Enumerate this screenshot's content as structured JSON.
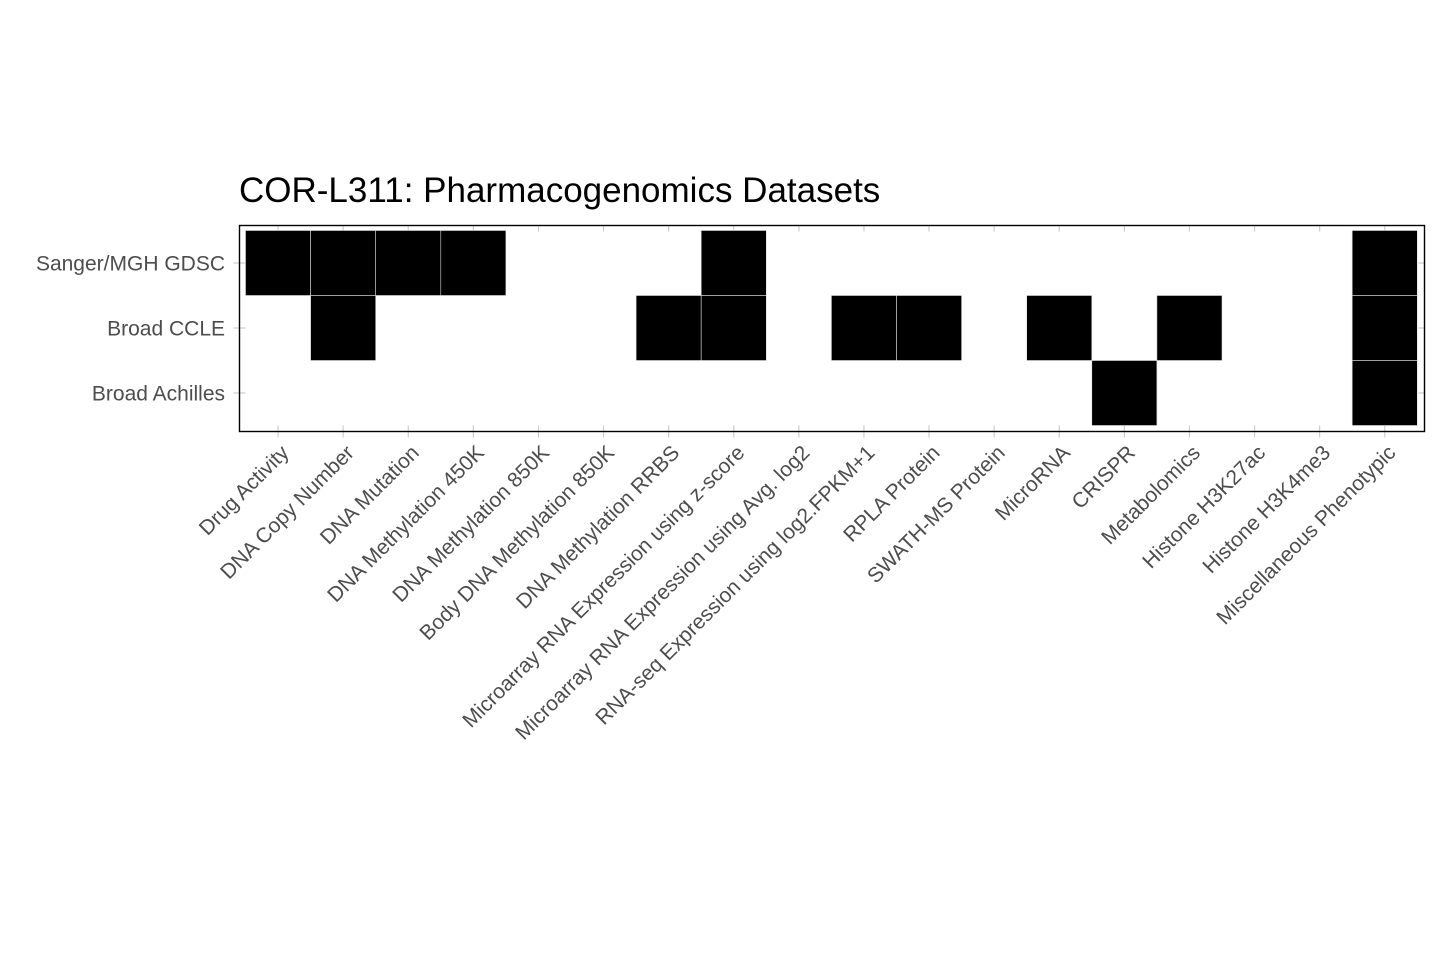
{
  "chart_data": {
    "type": "heatmap",
    "title": "COR-L311: Pharmacogenomics Datasets",
    "xlabel": "",
    "ylabel": "",
    "legend": "none",
    "grid": false,
    "fill_color": "#000000",
    "rows": [
      "Sanger/MGH GDSC",
      "Broad CCLE",
      "Broad Achilles"
    ],
    "columns": [
      "Drug Activity",
      "DNA Copy Number",
      "DNA Mutation",
      "DNA Methylation 450K",
      "DNA Methylation 850K",
      "Body DNA Methylation 850K",
      "DNA Methylation RRBS",
      "Microarray RNA Expression using z-score",
      "Microarray RNA Expression using Avg. log2",
      "RNA-seq Expression using log2.FPKM+1",
      "RPLA Protein",
      "SWATH-MS Protein",
      "MicroRNA",
      "CRISPR",
      "Metabolomics",
      "Histone H3K27ac",
      "Histone H3K4me3",
      "Miscellaneous Phenotypic"
    ],
    "values": [
      [
        1,
        1,
        1,
        1,
        0,
        0,
        0,
        1,
        0,
        0,
        0,
        0,
        0,
        0,
        0,
        0,
        0,
        1
      ],
      [
        0,
        1,
        0,
        0,
        0,
        0,
        1,
        1,
        0,
        1,
        1,
        0,
        1,
        0,
        1,
        0,
        0,
        1
      ],
      [
        0,
        0,
        0,
        0,
        0,
        0,
        0,
        0,
        0,
        0,
        0,
        0,
        0,
        1,
        0,
        0,
        0,
        1
      ]
    ]
  }
}
